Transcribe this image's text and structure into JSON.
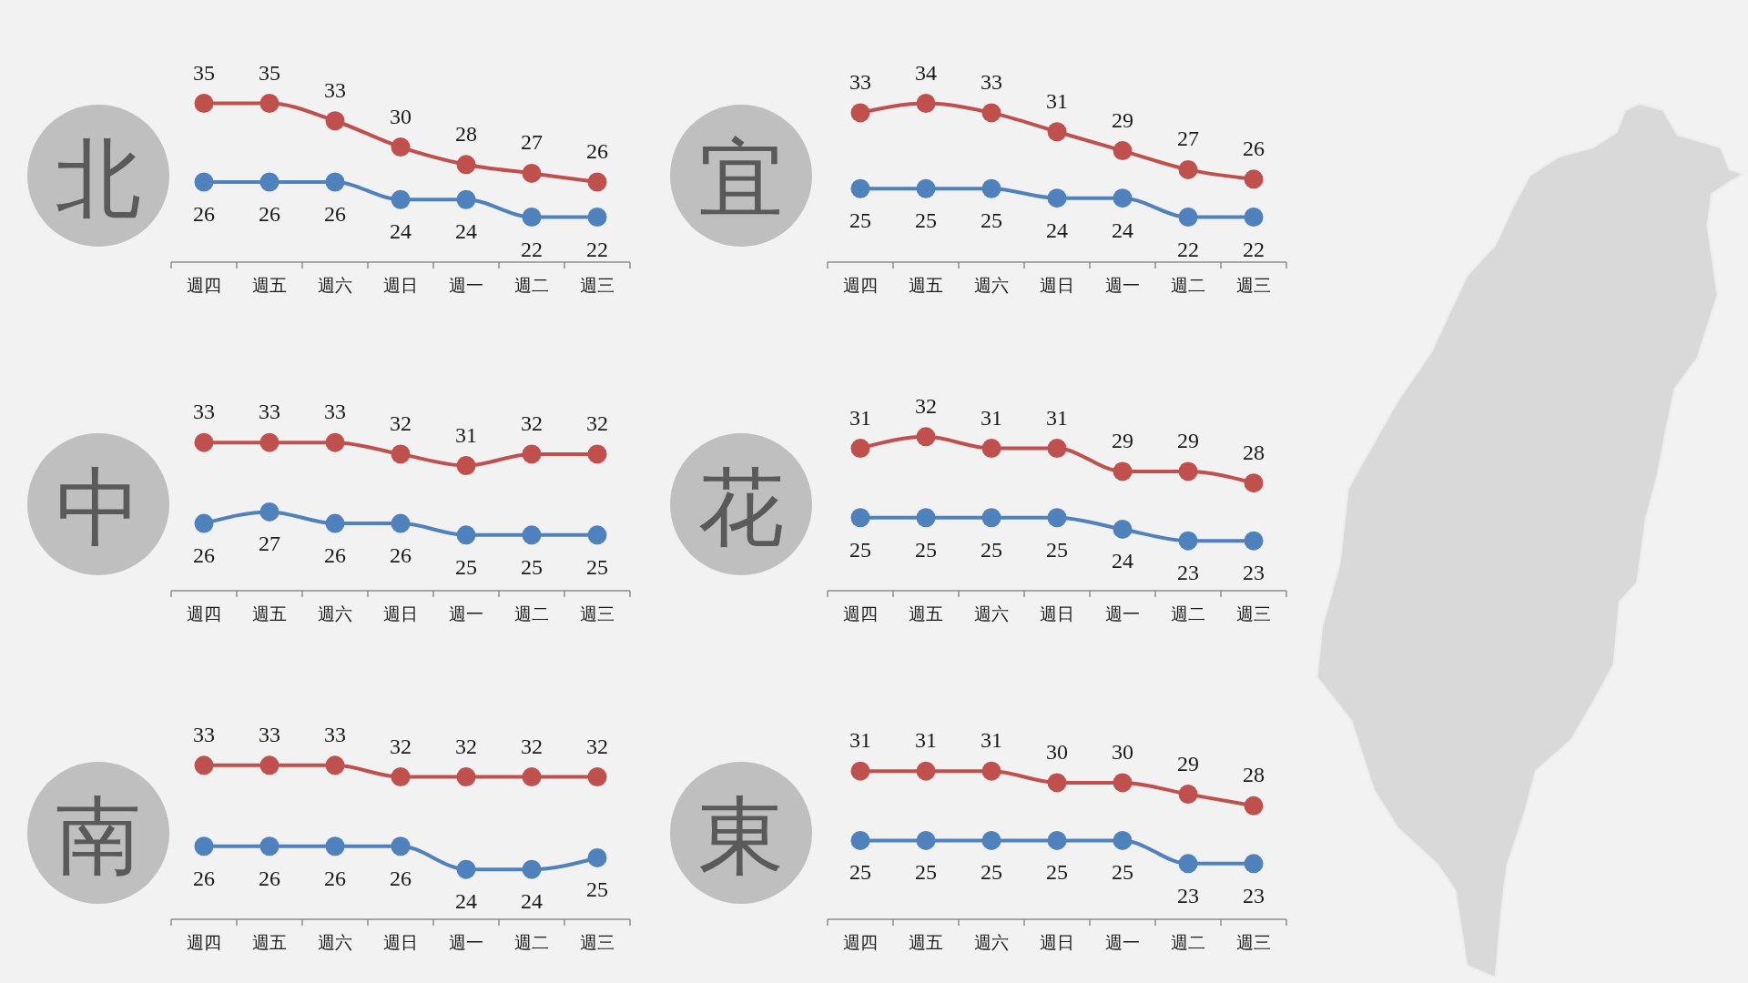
{
  "chart_data": [
    {
      "type": "line",
      "title": "北",
      "categories": [
        "週四",
        "週五",
        "週六",
        "週日",
        "週一",
        "週二",
        "週三"
      ],
      "series": [
        {
          "color": "#c0504d",
          "values": [
            35,
            35,
            33,
            30,
            28,
            27,
            26
          ]
        },
        {
          "color": "#4f81bd",
          "values": [
            26,
            26,
            26,
            24,
            24,
            22,
            22
          ]
        }
      ],
      "marker": "circle",
      "data_labels": true
    },
    {
      "type": "line",
      "title": "宜",
      "categories": [
        "週四",
        "週五",
        "週六",
        "週日",
        "週一",
        "週二",
        "週三"
      ],
      "series": [
        {
          "color": "#c0504d",
          "values": [
            33,
            34,
            33,
            31,
            29,
            27,
            26
          ]
        },
        {
          "color": "#4f81bd",
          "values": [
            25,
            25,
            25,
            24,
            24,
            22,
            22
          ]
        }
      ],
      "marker": "circle",
      "data_labels": true
    },
    {
      "type": "line",
      "title": "中",
      "categories": [
        "週四",
        "週五",
        "週六",
        "週日",
        "週一",
        "週二",
        "週三"
      ],
      "series": [
        {
          "color": "#c0504d",
          "values": [
            33,
            33,
            33,
            32,
            31,
            32,
            32
          ]
        },
        {
          "color": "#4f81bd",
          "values": [
            26,
            27,
            26,
            26,
            25,
            25,
            25
          ]
        }
      ],
      "marker": "circle",
      "data_labels": true
    },
    {
      "type": "line",
      "title": "花",
      "categories": [
        "週四",
        "週五",
        "週六",
        "週日",
        "週一",
        "週二",
        "週三"
      ],
      "series": [
        {
          "color": "#c0504d",
          "values": [
            31,
            32,
            31,
            31,
            29,
            29,
            28
          ]
        },
        {
          "color": "#4f81bd",
          "values": [
            25,
            25,
            25,
            25,
            24,
            23,
            23
          ]
        }
      ],
      "marker": "circle",
      "data_labels": true
    },
    {
      "type": "line",
      "title": "南",
      "categories": [
        "週四",
        "週五",
        "週六",
        "週日",
        "週一",
        "週二",
        "週三"
      ],
      "series": [
        {
          "color": "#c0504d",
          "values": [
            33,
            33,
            33,
            32,
            32,
            32,
            32
          ]
        },
        {
          "color": "#4f81bd",
          "values": [
            26,
            26,
            26,
            26,
            24,
            24,
            25
          ]
        }
      ],
      "marker": "circle",
      "data_labels": true
    },
    {
      "type": "line",
      "title": "東",
      "categories": [
        "週四",
        "週五",
        "週六",
        "週日",
        "週一",
        "週二",
        "週三"
      ],
      "series": [
        {
          "color": "#c0504d",
          "values": [
            31,
            31,
            31,
            30,
            30,
            29,
            28
          ]
        },
        {
          "color": "#4f81bd",
          "values": [
            25,
            25,
            25,
            25,
            25,
            23,
            23
          ]
        }
      ],
      "marker": "circle",
      "data_labels": true
    }
  ]
}
